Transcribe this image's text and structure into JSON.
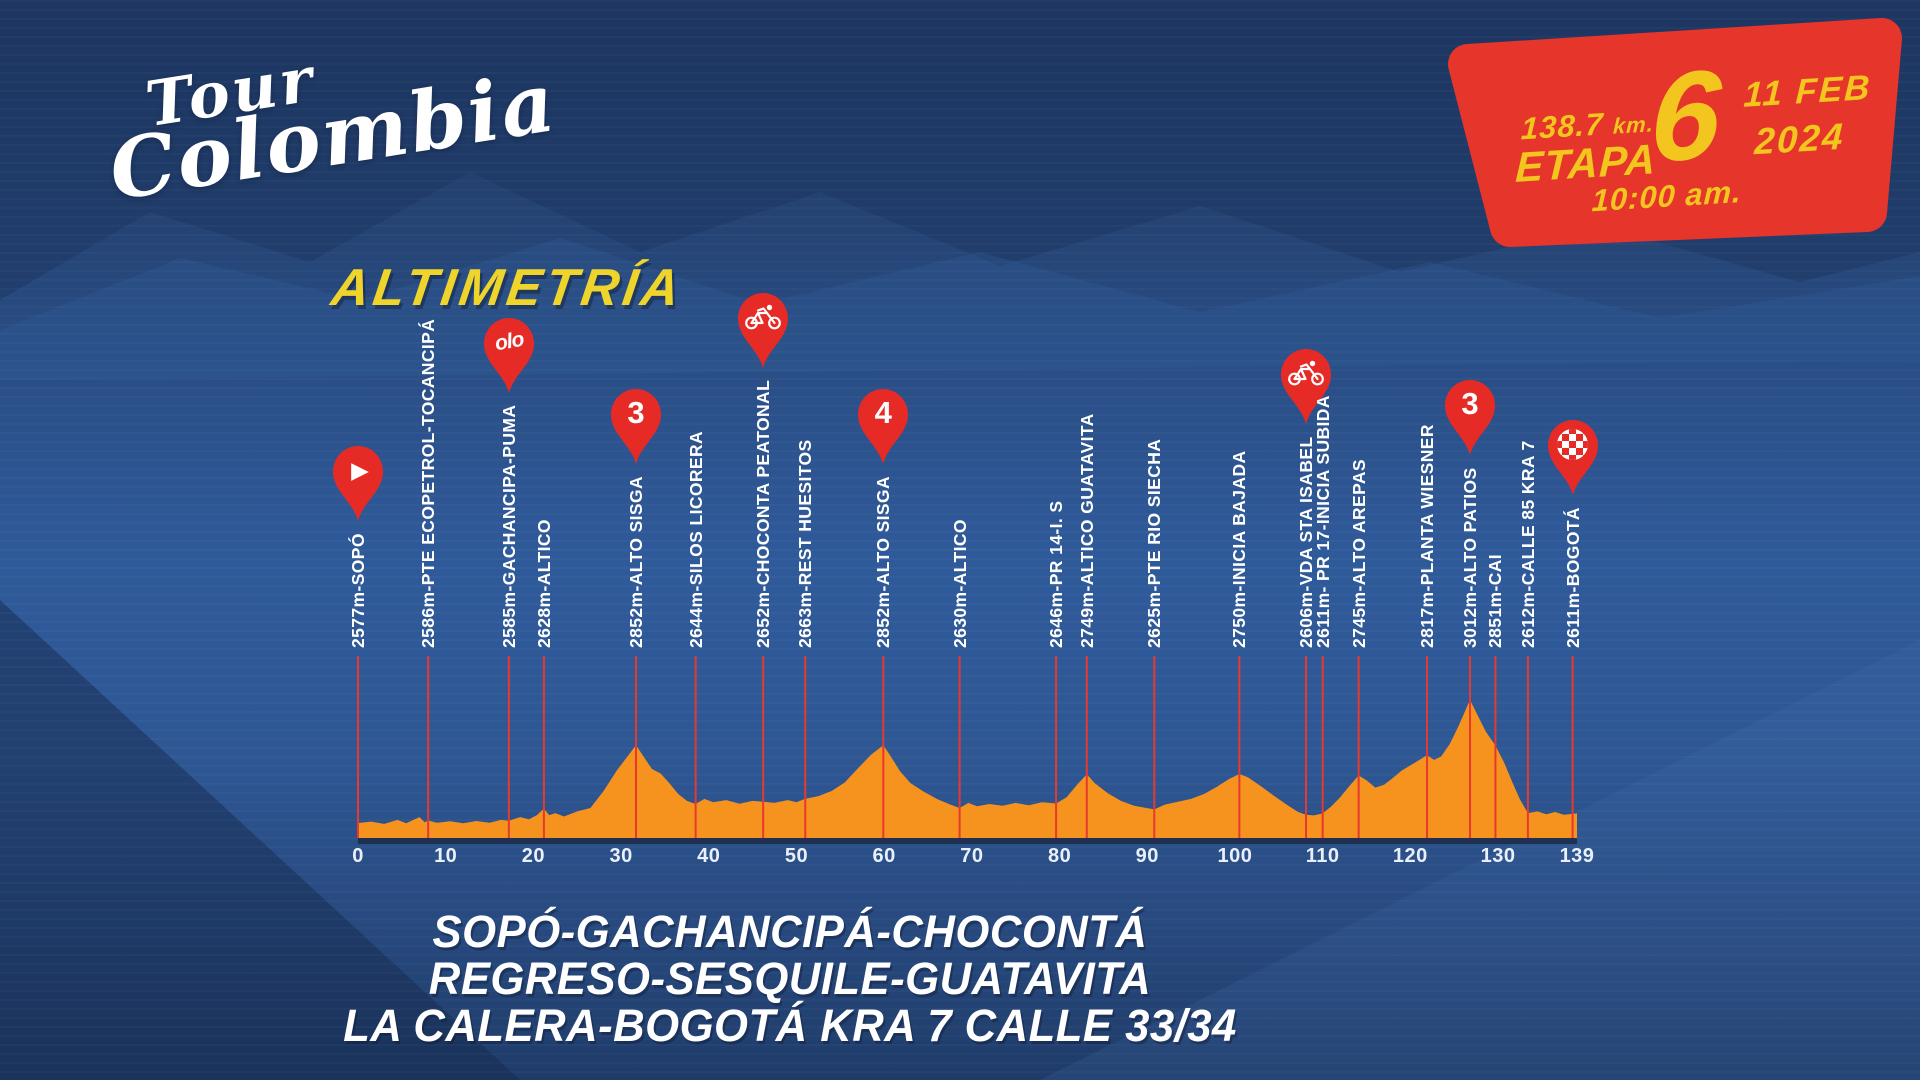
{
  "logo": {
    "line1": "Tour",
    "line2": "Colombia"
  },
  "badge": {
    "distance_value": "138.7",
    "distance_unit": "km.",
    "stage_label": "ETAPA",
    "stage_number": "6",
    "date_line1": "11 FEB",
    "date_line2": "2024",
    "start_time": "10:00 am."
  },
  "title": "ALTIMETRÍA",
  "route_lines": [
    "SOPÓ-GACHANCIPÁ-CHOCONTÁ",
    "REGRESO-SESQUILE-GUATAVITA",
    "LA CALERA-BOGOTÁ KRA 7 CALLE 33/34"
  ],
  "colors": {
    "background_blue": "#2e5794",
    "badge_red": "#e6352b",
    "pin_red": "#e62b26",
    "marker_line_red": "#e8392e",
    "profile_orange": "#f6921e",
    "accent_yellow": "#f2c51f",
    "title_yellow": "#efd42c",
    "text_white": "#ffffff"
  },
  "chart_data": {
    "type": "area",
    "title": "ALTIMETRÍA",
    "x_unit": "km",
    "x_range": [
      0,
      139
    ],
    "x_ticks": [
      0,
      10,
      20,
      30,
      40,
      50,
      60,
      70,
      80,
      90,
      100,
      110,
      120,
      130,
      139
    ],
    "elevation_unit": "m",
    "grid": false,
    "waypoints": [
      {
        "km": 0,
        "elevation_m": 2577,
        "label": "2577m-SOPÓ",
        "marker": "start-pin",
        "marker_text": null
      },
      {
        "km": 8,
        "elevation_m": 2586,
        "label": "2586m-PTE ECOPETROL-TOCANCIPÁ",
        "marker": null,
        "marker_text": null
      },
      {
        "km": 17.2,
        "elevation_m": 2585,
        "label": "2585m-GACHANCIPA-PUMA",
        "marker": "sprint-pin",
        "marker_text": "olo"
      },
      {
        "km": 21.2,
        "elevation_m": 2628,
        "label": "2628m-ALTICO",
        "marker": null,
        "marker_text": null
      },
      {
        "km": 31.7,
        "elevation_m": 2852,
        "label": "2852m-ALTO SISGA",
        "marker": "category-pin",
        "marker_text": "3"
      },
      {
        "km": 38.5,
        "elevation_m": 2644,
        "label": "2644m-SILOS LICORERA",
        "marker": null,
        "marker_text": null
      },
      {
        "km": 46.2,
        "elevation_m": 2652,
        "label": "2652m-CHOCONTA PEATONAL",
        "marker": "bike-pin",
        "marker_text": null
      },
      {
        "km": 51,
        "elevation_m": 2663,
        "label": "2663m-REST HUESITOS",
        "marker": null,
        "marker_text": null
      },
      {
        "km": 59.9,
        "elevation_m": 2852,
        "label": "2852m-ALTO SISGA",
        "marker": "category-pin",
        "marker_text": "4"
      },
      {
        "km": 68.6,
        "elevation_m": 2630,
        "label": "2630m-ALTICO",
        "marker": null,
        "marker_text": null
      },
      {
        "km": 79.6,
        "elevation_m": 2646,
        "label": "2646m-PR 14-I. S",
        "marker": null,
        "marker_text": null
      },
      {
        "km": 83.1,
        "elevation_m": 2749,
        "label": "2749m-ALTICO GUATAVITA",
        "marker": null,
        "marker_text": null
      },
      {
        "km": 90.8,
        "elevation_m": 2625,
        "label": "2625m-PTE RIO SIECHA",
        "marker": null,
        "marker_text": null
      },
      {
        "km": 100.5,
        "elevation_m": 2750,
        "label": "2750m-INICIA BAJADA",
        "marker": null,
        "marker_text": null
      },
      {
        "km": 108.1,
        "elevation_m": 2606,
        "label": "2606m-VDA STA ISABEL",
        "marker": "bike-pin",
        "marker_text": null
      },
      {
        "km": 110,
        "elevation_m": 2611,
        "label": "2611m- PR 17-INICIA SUBIDA",
        "marker": null,
        "marker_text": null
      },
      {
        "km": 114.1,
        "elevation_m": 2745,
        "label": "2745m-ALTO AREPAS",
        "marker": null,
        "marker_text": null
      },
      {
        "km": 121.9,
        "elevation_m": 2817,
        "label": "2817m-PLANTA WIESNER",
        "marker": null,
        "marker_text": null
      },
      {
        "km": 126.8,
        "elevation_m": 3012,
        "label": "3012m-ALTO PATIOS",
        "marker": "category-pin",
        "marker_text": "3"
      },
      {
        "km": 129.7,
        "elevation_m": 2851,
        "label": "2851m-CAI",
        "marker": null,
        "marker_text": null
      },
      {
        "km": 133.4,
        "elevation_m": 2612,
        "label": "2612m-CALLE 85 KRA 7",
        "marker": null,
        "marker_text": null
      },
      {
        "km": 138.5,
        "elevation_m": 2611,
        "label": "2611m-BOGOTÁ",
        "marker": "finish-pin",
        "marker_text": null
      }
    ],
    "profile": [
      [
        0,
        2577
      ],
      [
        1.5,
        2582
      ],
      [
        3,
        2574
      ],
      [
        4.5,
        2588
      ],
      [
        5.5,
        2576
      ],
      [
        7,
        2598
      ],
      [
        7.6,
        2580
      ],
      [
        8,
        2586
      ],
      [
        9,
        2578
      ],
      [
        10.5,
        2583
      ],
      [
        12,
        2576
      ],
      [
        13.5,
        2584
      ],
      [
        15,
        2578
      ],
      [
        16.3,
        2588
      ],
      [
        17.2,
        2585
      ],
      [
        18.5,
        2598
      ],
      [
        19.5,
        2590
      ],
      [
        20.4,
        2605
      ],
      [
        21.2,
        2628
      ],
      [
        21.8,
        2605
      ],
      [
        22.5,
        2612
      ],
      [
        23.5,
        2600
      ],
      [
        25,
        2618
      ],
      [
        26.5,
        2630
      ],
      [
        28,
        2690
      ],
      [
        29.5,
        2762
      ],
      [
        31.7,
        2852
      ],
      [
        32.5,
        2815
      ],
      [
        33.5,
        2768
      ],
      [
        34.5,
        2752
      ],
      [
        35.5,
        2718
      ],
      [
        36.5,
        2680
      ],
      [
        37.5,
        2655
      ],
      [
        38.5,
        2644
      ],
      [
        39.5,
        2662
      ],
      [
        40.5,
        2650
      ],
      [
        42,
        2658
      ],
      [
        43.5,
        2645
      ],
      [
        45,
        2655
      ],
      [
        46.2,
        2652
      ],
      [
        47.5,
        2648
      ],
      [
        49,
        2658
      ],
      [
        50,
        2650
      ],
      [
        51,
        2663
      ],
      [
        52.5,
        2672
      ],
      [
        54,
        2690
      ],
      [
        55.5,
        2720
      ],
      [
        57,
        2770
      ],
      [
        58.5,
        2818
      ],
      [
        59.9,
        2852
      ],
      [
        60.8,
        2810
      ],
      [
        61.8,
        2760
      ],
      [
        63,
        2718
      ],
      [
        64.5,
        2688
      ],
      [
        66,
        2662
      ],
      [
        67.3,
        2645
      ],
      [
        68.6,
        2630
      ],
      [
        69.6,
        2648
      ],
      [
        70.6,
        2636
      ],
      [
        72,
        2644
      ],
      [
        73.5,
        2638
      ],
      [
        75,
        2648
      ],
      [
        76.5,
        2640
      ],
      [
        78,
        2650
      ],
      [
        79.6,
        2646
      ],
      [
        80.8,
        2668
      ],
      [
        82,
        2712
      ],
      [
        83.1,
        2749
      ],
      [
        84,
        2718
      ],
      [
        85.5,
        2682
      ],
      [
        87,
        2655
      ],
      [
        88.5,
        2638
      ],
      [
        90.8,
        2625
      ],
      [
        92,
        2642
      ],
      [
        93.5,
        2652
      ],
      [
        95,
        2662
      ],
      [
        96.5,
        2680
      ],
      [
        98,
        2706
      ],
      [
        99.3,
        2732
      ],
      [
        100.5,
        2750
      ],
      [
        101.5,
        2738
      ],
      [
        103,
        2706
      ],
      [
        104.5,
        2672
      ],
      [
        106,
        2640
      ],
      [
        107.2,
        2616
      ],
      [
        108.1,
        2606
      ],
      [
        109,
        2604
      ],
      [
        110,
        2611
      ],
      [
        111,
        2636
      ],
      [
        112,
        2668
      ],
      [
        113,
        2706
      ],
      [
        114.1,
        2745
      ],
      [
        115,
        2728
      ],
      [
        116,
        2702
      ],
      [
        117,
        2712
      ],
      [
        118,
        2736
      ],
      [
        119,
        2762
      ],
      [
        120.5,
        2790
      ],
      [
        121.9,
        2817
      ],
      [
        122.7,
        2800
      ],
      [
        123.5,
        2812
      ],
      [
        124.5,
        2856
      ],
      [
        125.5,
        2920
      ],
      [
        126.8,
        3012
      ],
      [
        127.6,
        2962
      ],
      [
        128.6,
        2900
      ],
      [
        129.7,
        2851
      ],
      [
        130.7,
        2790
      ],
      [
        131.7,
        2716
      ],
      [
        132.5,
        2660
      ],
      [
        133.4,
        2612
      ],
      [
        134.5,
        2618
      ],
      [
        135.5,
        2608
      ],
      [
        136.5,
        2616
      ],
      [
        137.5,
        2606
      ],
      [
        139,
        2611
      ]
    ]
  }
}
